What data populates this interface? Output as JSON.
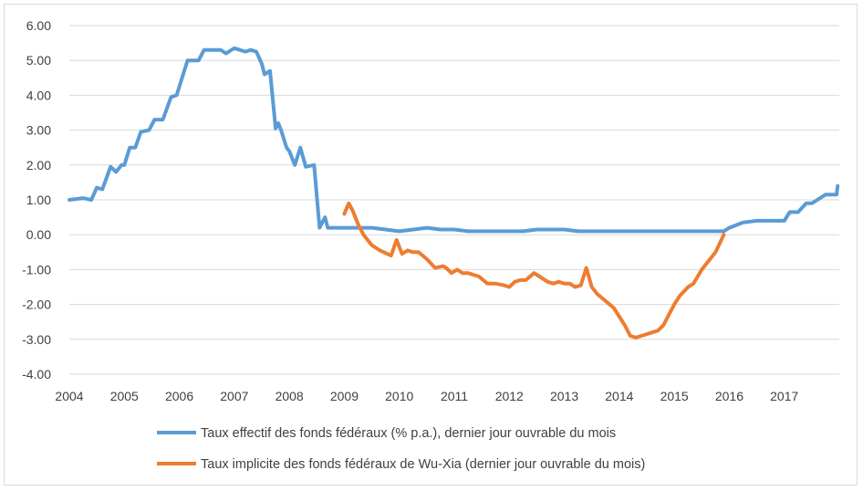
{
  "chart_data": {
    "type": "line",
    "title": "",
    "xlabel": "",
    "ylabel": "",
    "xlim": [
      2004.0,
      2018.0
    ],
    "ylim": [
      -4.0,
      6.0
    ],
    "grid": true,
    "legend_position": "bottom",
    "x_tick_labels": [
      "2004",
      "2005",
      "2006",
      "2007",
      "2008",
      "2009",
      "2010",
      "2011",
      "2012",
      "2013",
      "2014",
      "2015",
      "2016",
      "2017"
    ],
    "y_tick_labels": [
      "6.00",
      "5.00",
      "4.00",
      "3.00",
      "2.00",
      "1.00",
      "0.00",
      "-1.00",
      "-2.00",
      "-3.00",
      "-4.00"
    ],
    "series": [
      {
        "name": "Taux effectif des fonds fédéraux (% p.a.), dernier jour ouvrable du mois",
        "color": "#5b9bd5",
        "x": [
          2004.0,
          2004.25,
          2004.4,
          2004.5,
          2004.6,
          2004.75,
          2004.85,
          2004.95,
          2005.0,
          2005.1,
          2005.2,
          2005.3,
          2005.45,
          2005.55,
          2005.7,
          2005.85,
          2005.95,
          2006.05,
          2006.15,
          2006.25,
          2006.35,
          2006.45,
          2006.55,
          2006.65,
          2006.75,
          2006.85,
          2006.95,
          2007.0,
          2007.1,
          2007.2,
          2007.3,
          2007.4,
          2007.5,
          2007.55,
          2007.65,
          2007.75,
          2007.8,
          2007.85,
          2007.95,
          2008.0,
          2008.1,
          2008.2,
          2008.3,
          2008.45,
          2008.55,
          2008.65,
          2008.7,
          2008.8,
          2008.85,
          2008.95,
          2009.0,
          2009.2,
          2009.5,
          2009.75,
          2010.0,
          2010.25,
          2010.5,
          2010.75,
          2011.0,
          2011.25,
          2011.5,
          2011.75,
          2012.0,
          2012.25,
          2012.5,
          2012.75,
          2013.0,
          2013.25,
          2013.5,
          2013.75,
          2014.0,
          2014.25,
          2014.5,
          2014.75,
          2015.0,
          2015.25,
          2015.5,
          2015.75,
          2015.9,
          2016.0,
          2016.25,
          2016.5,
          2016.75,
          2016.85,
          2017.0,
          2017.1,
          2017.25,
          2017.4,
          2017.5,
          2017.75,
          2017.95,
          2017.97
        ],
        "values": [
          1.0,
          1.05,
          1.0,
          1.35,
          1.3,
          1.95,
          1.8,
          2.0,
          2.0,
          2.5,
          2.5,
          2.95,
          3.0,
          3.3,
          3.3,
          3.95,
          4.0,
          4.5,
          5.0,
          5.0,
          5.0,
          5.3,
          5.3,
          5.3,
          5.3,
          5.2,
          5.3,
          5.35,
          5.3,
          5.25,
          5.3,
          5.25,
          4.9,
          4.6,
          4.7,
          3.05,
          3.2,
          3.0,
          2.5,
          2.4,
          2.0,
          2.5,
          1.95,
          2.0,
          0.2,
          0.5,
          0.2,
          0.2,
          0.2,
          0.2,
          0.2,
          0.2,
          0.2,
          0.15,
          0.1,
          0.15,
          0.2,
          0.15,
          0.15,
          0.1,
          0.1,
          0.1,
          0.1,
          0.1,
          0.15,
          0.15,
          0.15,
          0.1,
          0.1,
          0.1,
          0.1,
          0.1,
          0.1,
          0.1,
          0.1,
          0.1,
          0.1,
          0.1,
          0.1,
          0.2,
          0.35,
          0.4,
          0.4,
          0.4,
          0.4,
          0.65,
          0.65,
          0.9,
          0.9,
          1.15,
          1.15,
          1.4
        ]
      },
      {
        "name": "Taux implicite des fonds fédéraux de Wu-Xia (dernier jour ouvrable du mois)",
        "color": "#ed7d31",
        "x": [
          2009.0,
          2009.08,
          2009.15,
          2009.25,
          2009.35,
          2009.5,
          2009.65,
          2009.85,
          2009.95,
          2010.05,
          2010.15,
          2010.25,
          2010.35,
          2010.5,
          2010.65,
          2010.8,
          2010.85,
          2010.95,
          2011.05,
          2011.15,
          2011.25,
          2011.35,
          2011.45,
          2011.6,
          2011.75,
          2011.9,
          2012.0,
          2012.1,
          2012.2,
          2012.3,
          2012.45,
          2012.55,
          2012.7,
          2012.8,
          2012.9,
          2013.0,
          2013.1,
          2013.2,
          2013.3,
          2013.4,
          2013.5,
          2013.6,
          2013.75,
          2013.9,
          2014.0,
          2014.1,
          2014.2,
          2014.3,
          2014.4,
          2014.5,
          2014.6,
          2014.7,
          2014.8,
          2014.9,
          2015.0,
          2015.1,
          2015.25,
          2015.35,
          2015.5,
          2015.6,
          2015.75,
          2015.9
        ],
        "values": [
          0.6,
          0.9,
          0.7,
          0.3,
          0.0,
          -0.3,
          -0.45,
          -0.6,
          -0.15,
          -0.55,
          -0.45,
          -0.5,
          -0.5,
          -0.7,
          -0.95,
          -0.9,
          -0.95,
          -1.1,
          -1.0,
          -1.1,
          -1.1,
          -1.15,
          -1.2,
          -1.4,
          -1.4,
          -1.45,
          -1.5,
          -1.35,
          -1.3,
          -1.3,
          -1.1,
          -1.2,
          -1.35,
          -1.4,
          -1.35,
          -1.4,
          -1.4,
          -1.5,
          -1.45,
          -0.95,
          -1.5,
          -1.7,
          -1.9,
          -2.1,
          -2.35,
          -2.6,
          -2.9,
          -2.95,
          -2.9,
          -2.85,
          -2.8,
          -2.75,
          -2.6,
          -2.3,
          -2.0,
          -1.75,
          -1.5,
          -1.4,
          -1.0,
          -0.8,
          -0.5,
          0.0
        ]
      }
    ]
  }
}
